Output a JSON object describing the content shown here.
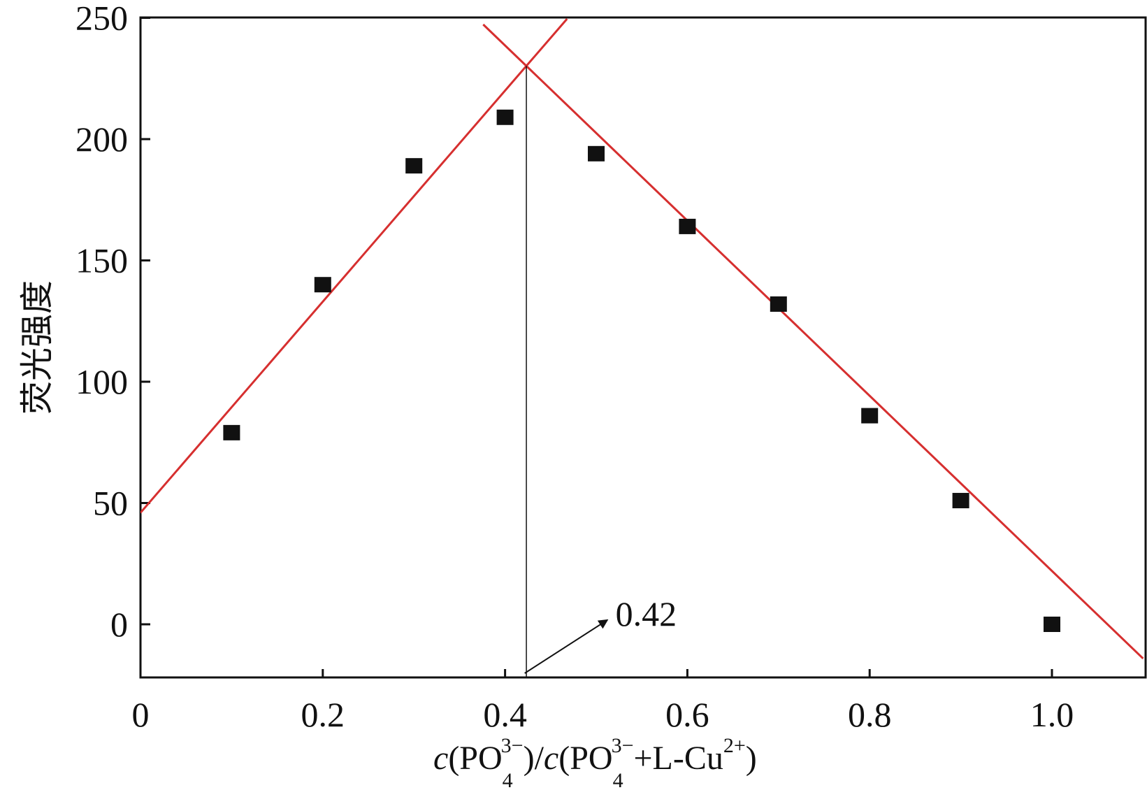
{
  "chart_data": {
    "type": "scatter",
    "xlabel": {
      "c1": "c",
      "po4_a": "PO",
      "sub4_a": "4",
      "sup3_a": "3−",
      "middle": ")/",
      "c2": "c",
      "po4_b": "PO",
      "sub4_b": "4",
      "sup3_b": "3−",
      "plus_l_cu": "+L-Cu",
      "sup2": "2+",
      "close": ")",
      "open1": "(",
      "open2": "("
    },
    "ylabel": "荧光强度",
    "xlim": [
      0,
      1.1
    ],
    "ylim": [
      -24,
      250
    ],
    "xticks": [
      0,
      0.2,
      0.4,
      0.6,
      0.8,
      1.0
    ],
    "xtick_labels": [
      "0",
      "0.2",
      "0.4",
      "0.6",
      "0.8",
      "1.0"
    ],
    "yticks": [
      0,
      50,
      100,
      150,
      200,
      250
    ],
    "ytick_labels": [
      "0",
      "50",
      "100",
      "150",
      "200",
      "250"
    ],
    "series": [
      {
        "marker": "square",
        "color": "#111111",
        "points": [
          {
            "x": 0.1,
            "y": 79
          },
          {
            "x": 0.2,
            "y": 140
          },
          {
            "x": 0.3,
            "y": 189
          },
          {
            "x": 0.4,
            "y": 209
          },
          {
            "x": 0.5,
            "y": 194
          },
          {
            "x": 0.6,
            "y": 164
          },
          {
            "x": 0.7,
            "y": 132
          },
          {
            "x": 0.8,
            "y": 86
          },
          {
            "x": 0.9,
            "y": 51
          },
          {
            "x": 1.0,
            "y": 0
          }
        ]
      }
    ],
    "fit_lines": [
      {
        "color": "#d62f2f",
        "slope": 435,
        "intercept": 46,
        "x_start": 0,
        "x_end": 0.468
      },
      {
        "color": "#d62f2f",
        "slope": -361,
        "intercept": 383,
        "x_start": 0.376,
        "x_end": 1.1
      }
    ],
    "intersection_x": 0.42,
    "annotation": {
      "text": "0.42"
    },
    "grid": false
  }
}
